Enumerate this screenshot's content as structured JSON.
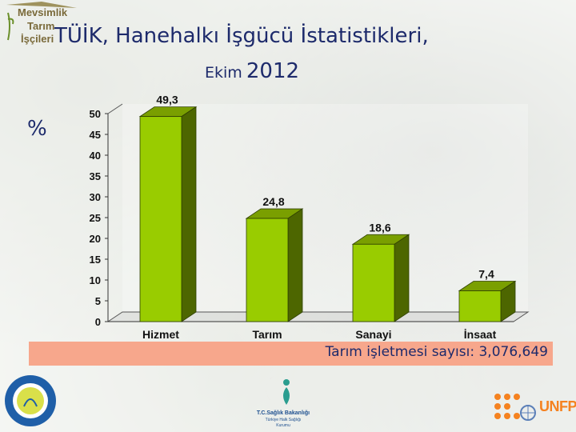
{
  "header": {
    "logo_line1": "Mevsimlik",
    "logo_line2": "Tarım",
    "logo_line3": "İşçileri",
    "title_line1": "TÜİK, Hanehalkı İşgücü İstatistikleri,",
    "title_line2_a": "Ekim",
    "title_line2_b": "2012"
  },
  "y_unit_label": "%",
  "note": "Tarım işletmesi sayısı: 3,076,649",
  "logos": {
    "mid_line1": "T.C.Sağlık Bakanlığı",
    "mid_line2": "Türkiye Halk Sağlığı",
    "mid_line3": "Kurumu",
    "right_text": "UNFPA"
  },
  "colors": {
    "bar_front": "#99cc00",
    "bar_side": "#4d6600",
    "bar_top": "#7a9f00",
    "title": "#1d2a6b",
    "note_band": "#f7a78c"
  },
  "chart_data": {
    "type": "bar",
    "categories": [
      "Hizmet",
      "Tarım",
      "Sanayi",
      "İnsaat"
    ],
    "values": [
      49.3,
      24.8,
      18.6,
      7.4
    ],
    "value_labels": [
      "49,3",
      "24,8",
      "18,6",
      "7,4"
    ],
    "ylabel": "%",
    "ylim": [
      0,
      50
    ],
    "yticks": [
      0,
      5,
      10,
      15,
      20,
      25,
      30,
      35,
      40,
      45,
      50
    ],
    "grid": false,
    "legend": "none",
    "style": "3d"
  }
}
